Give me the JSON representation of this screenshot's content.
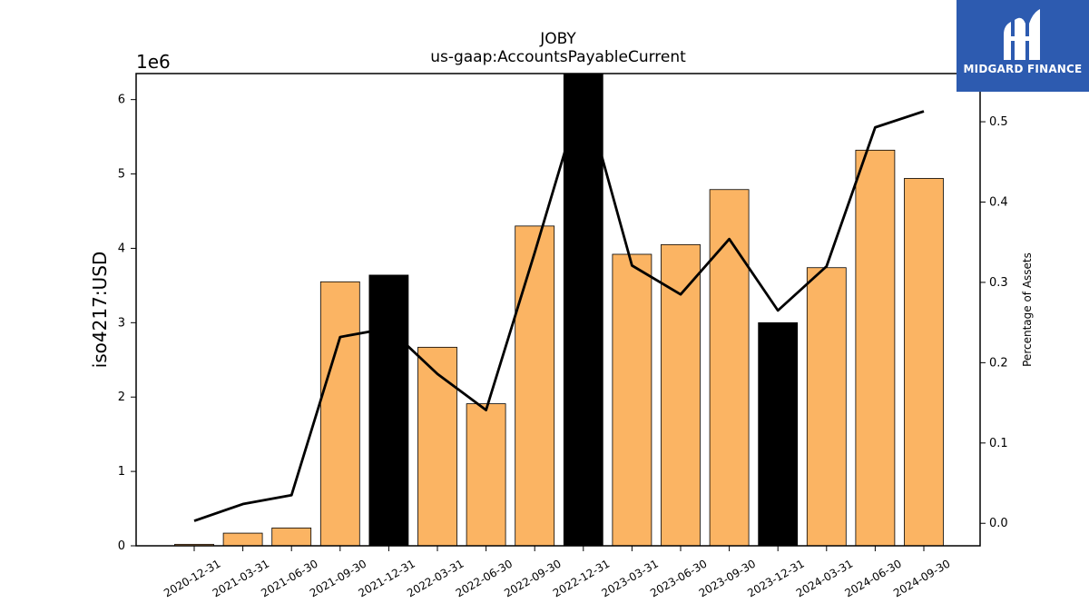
{
  "chart_data": {
    "type": "bar",
    "title": "JOBY",
    "subtitle": "us-gaap:AccountsPayableCurrent",
    "ylabel": "iso4217:USD",
    "y_offset_label": "1e6",
    "y2label": "Percentage of Assets",
    "categories": [
      "2020-12-31",
      "2021-03-31",
      "2021-06-30",
      "2021-09-30",
      "2021-12-31",
      "2022-03-31",
      "2022-06-30",
      "2022-09-30",
      "2022-12-31",
      "2023-03-31",
      "2023-06-30",
      "2023-09-30",
      "2023-12-31",
      "2024-03-31",
      "2024-06-30",
      "2024-09-30"
    ],
    "series": [
      {
        "type": "bar",
        "values": [
          20000,
          170000,
          240000,
          3550000,
          3640000,
          2670000,
          1910000,
          4300000,
          6500000,
          3920000,
          4050000,
          4790000,
          3000000,
          3740000,
          5320000,
          4940000
        ],
        "highlight": [
          false,
          false,
          false,
          false,
          true,
          false,
          false,
          false,
          true,
          false,
          false,
          false,
          true,
          false,
          false,
          false
        ]
      },
      {
        "type": "line",
        "axis": "secondary",
        "values": [
          0.003,
          0.024,
          0.035,
          0.232,
          0.243,
          0.186,
          0.141,
          0.337,
          0.54,
          0.321,
          0.285,
          0.354,
          0.265,
          0.32,
          0.493,
          0.513
        ]
      }
    ],
    "ylim": [
      0,
      6350000
    ],
    "y_ticks": [
      0,
      1,
      2,
      3,
      4,
      5,
      6
    ],
    "y2lim": [
      -0.028,
      0.56
    ],
    "y2_ticks": [
      "0.0",
      "0.1",
      "0.2",
      "0.3",
      "0.4",
      "0.5"
    ],
    "colors": {
      "bar": "#fbb463",
      "highlight": "#000000",
      "line": "#000000"
    },
    "grid": false,
    "legend": "none"
  },
  "logo": {
    "text": "MIDGARD FINANCE",
    "color": "#2d5bb0"
  }
}
